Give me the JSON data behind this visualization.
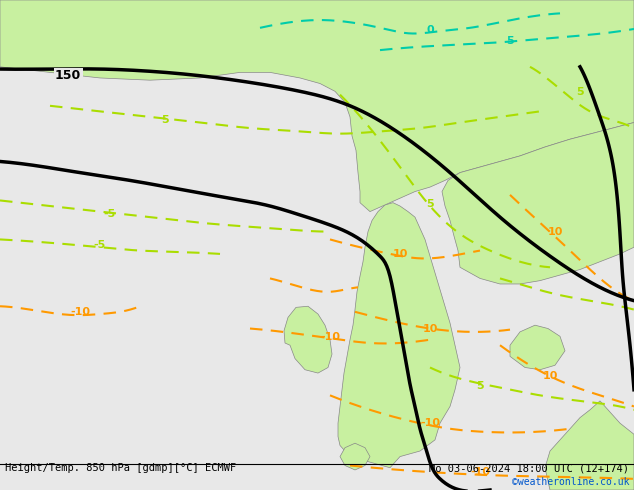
{
  "title_left": "Height/Temp. 850 hPa [gdmp][°C] ECMWF",
  "title_right": "Mo 03-06-2024 18:00 UTC (12+174)",
  "credit": "©weatheronline.co.uk",
  "bg_color": "#e8e8e8",
  "land_color": "#c8f0a0",
  "border_color": "#888888",
  "black_line_color": "#000000",
  "green_line_color": "#aadd00",
  "orange_line_color": "#ff9900",
  "teal_line_color": "#00ccaa",
  "fig_width": 6.34,
  "fig_height": 4.9,
  "dpi": 100
}
